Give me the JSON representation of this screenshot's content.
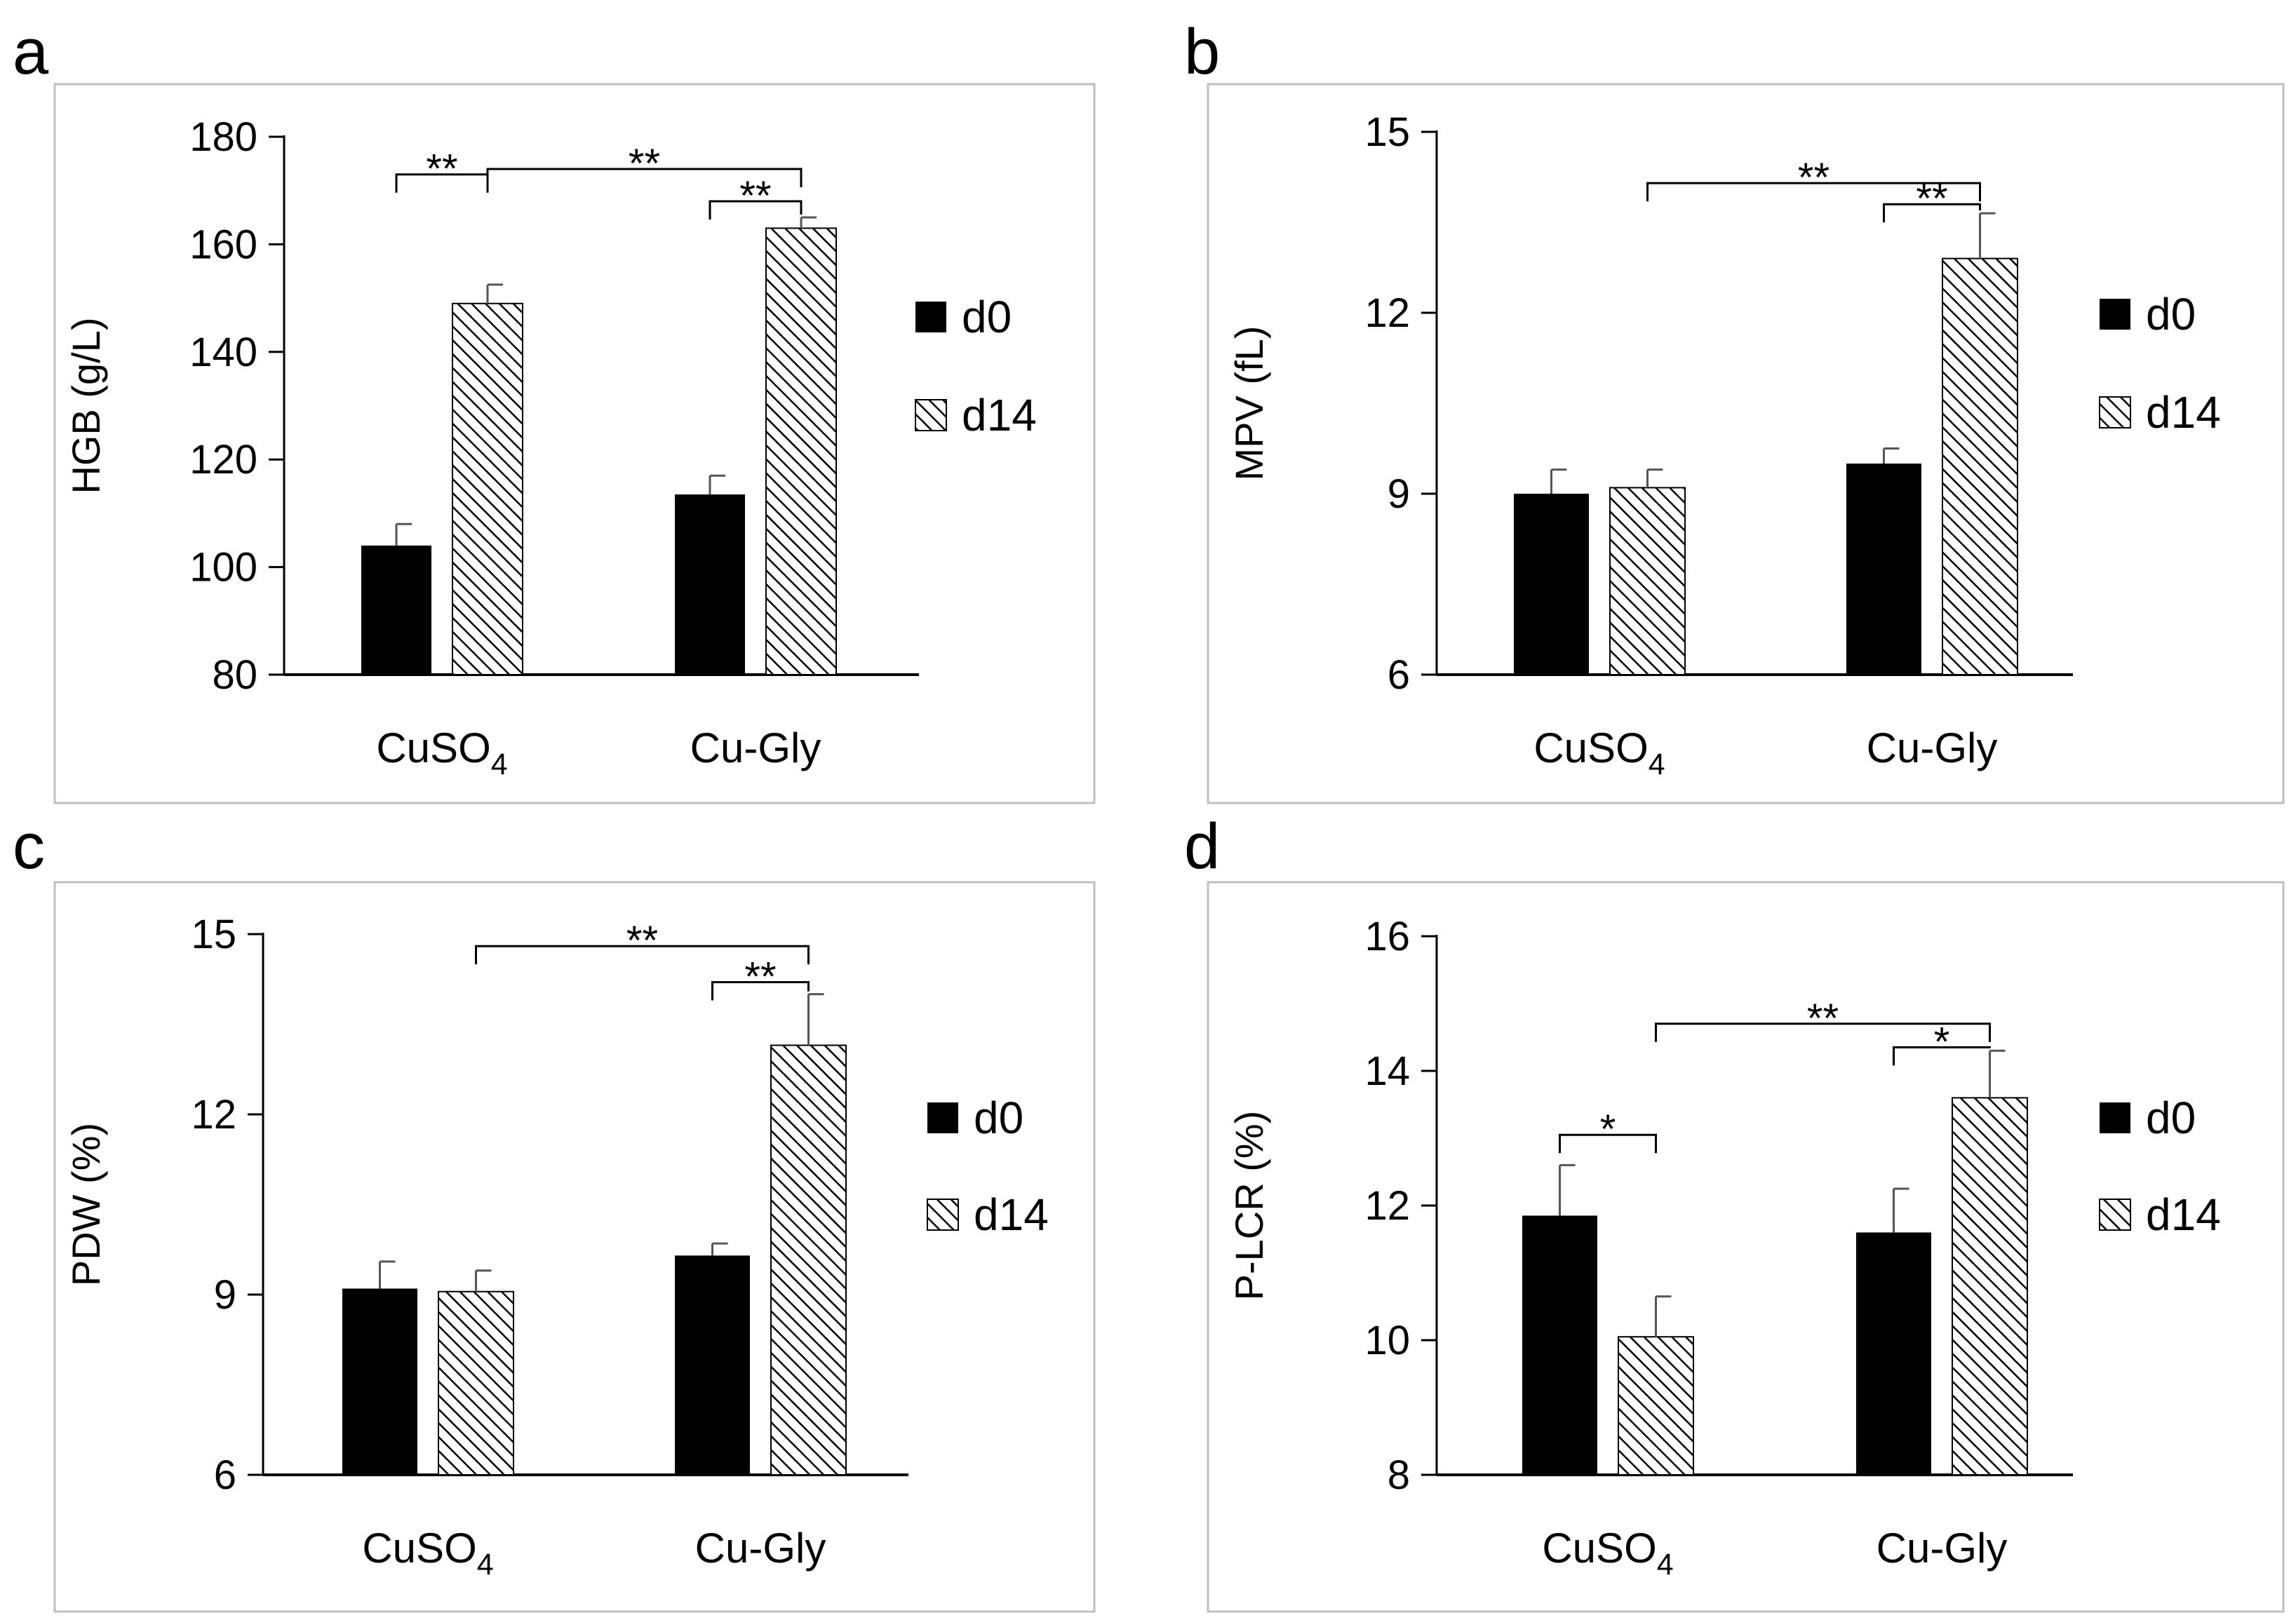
{
  "figure": {
    "panels": [
      "a",
      "b",
      "c",
      "d"
    ]
  },
  "colors": {
    "d0_fill": "#000000",
    "d14_hatch": "#000000",
    "frame": "#bfbfbf",
    "axis": "#000000",
    "error_bar": "#555555"
  },
  "chart_data": [
    {
      "panel_label": "a",
      "type": "bar",
      "ylabel": "HGB (g/L)",
      "categories": [
        "CuSO4",
        "Cu-Gly"
      ],
      "ylim": [
        80,
        180
      ],
      "yticks": [
        80,
        100,
        120,
        140,
        160,
        180
      ],
      "yticks_text": [
        "80",
        "100",
        "120",
        "140",
        "160",
        "180"
      ],
      "legend": [
        "d0",
        "d14"
      ],
      "legend_position": "right",
      "series": [
        {
          "name": "d0",
          "values": [
            104,
            113.5
          ],
          "errors": [
            4,
            3.5
          ]
        },
        {
          "name": "d14",
          "values": [
            149,
            163
          ],
          "errors": [
            3.5,
            2
          ]
        }
      ],
      "annotations": [
        {
          "text": "**",
          "from": [
            0,
            0
          ],
          "to": [
            0,
            1
          ],
          "level": 173
        },
        {
          "text": "**",
          "from": [
            0,
            1
          ],
          "to": [
            1,
            1
          ],
          "level": 174
        },
        {
          "text": "**",
          "from": [
            1,
            0
          ],
          "to": [
            1,
            1
          ],
          "level": 168
        }
      ]
    },
    {
      "panel_label": "b",
      "type": "bar",
      "ylabel": "MPV (fL)",
      "categories": [
        "CuSO4",
        "Cu-Gly"
      ],
      "ylim": [
        6,
        15
      ],
      "yticks": [
        6,
        9,
        12,
        15
      ],
      "yticks_text": [
        "6",
        "9",
        "12",
        "15"
      ],
      "legend": [
        "d0",
        "d14"
      ],
      "legend_position": "right",
      "series": [
        {
          "name": "d0",
          "values": [
            9.0,
            9.5
          ],
          "errors": [
            0.4,
            0.25
          ]
        },
        {
          "name": "d14",
          "values": [
            9.1,
            12.9
          ],
          "errors": [
            0.3,
            0.75
          ]
        }
      ],
      "annotations": [
        {
          "text": "**",
          "from": [
            0,
            1
          ],
          "to": [
            1,
            1
          ],
          "level": 14.15
        },
        {
          "text": "**",
          "from": [
            1,
            0
          ],
          "to": [
            1,
            1
          ],
          "level": 13.8
        }
      ]
    },
    {
      "panel_label": "c",
      "type": "bar",
      "ylabel": "PDW (%)",
      "categories": [
        "CuSO4",
        "Cu-Gly"
      ],
      "ylim": [
        6,
        15
      ],
      "yticks": [
        6,
        9,
        12,
        15
      ],
      "yticks_text": [
        "6",
        "9",
        "12",
        "15"
      ],
      "legend": [
        "d0",
        "d14"
      ],
      "legend_position": "right",
      "series": [
        {
          "name": "d0",
          "values": [
            9.1,
            9.65
          ],
          "errors": [
            0.45,
            0.2
          ]
        },
        {
          "name": "d14",
          "values": [
            9.05,
            13.15
          ],
          "errors": [
            0.35,
            0.85
          ]
        }
      ],
      "annotations": [
        {
          "text": "**",
          "from": [
            0,
            1
          ],
          "to": [
            1,
            1
          ],
          "level": 14.8
        },
        {
          "text": "**",
          "from": [
            1,
            0
          ],
          "to": [
            1,
            1
          ],
          "level": 14.2
        }
      ]
    },
    {
      "panel_label": "d",
      "type": "bar",
      "ylabel": "P-LCR (%)",
      "categories": [
        "CuSO4",
        "Cu-Gly"
      ],
      "ylim": [
        8,
        16
      ],
      "yticks": [
        8,
        10,
        12,
        14,
        16
      ],
      "yticks_text": [
        "8",
        "10",
        "12",
        "14",
        "16"
      ],
      "legend": [
        "d0",
        "d14"
      ],
      "legend_position": "right",
      "series": [
        {
          "name": "d0",
          "values": [
            11.85,
            11.6
          ],
          "errors": [
            0.75,
            0.65
          ]
        },
        {
          "name": "d14",
          "values": [
            10.05,
            13.6
          ],
          "errors": [
            0.6,
            0.7
          ]
        }
      ],
      "annotations": [
        {
          "text": "*",
          "from": [
            0,
            0
          ],
          "to": [
            0,
            1
          ],
          "level": 13.05
        },
        {
          "text": "**",
          "from": [
            0,
            1
          ],
          "to": [
            1,
            1
          ],
          "level": 14.7
        },
        {
          "text": "*",
          "from": [
            1,
            0
          ],
          "to": [
            1,
            1
          ],
          "level": 14.35
        }
      ]
    }
  ]
}
